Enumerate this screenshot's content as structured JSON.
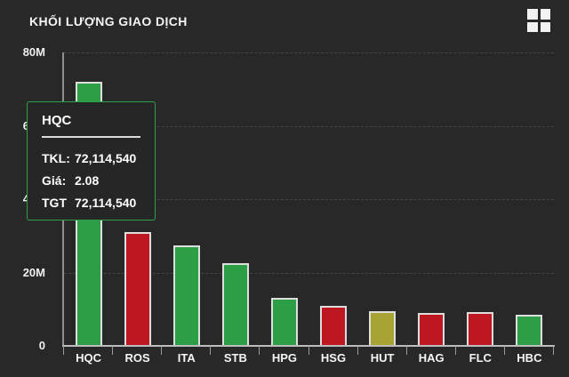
{
  "header": {
    "title": "KHỐI LƯỢNG GIAO DỊCH"
  },
  "colors": {
    "background": "#282828",
    "green": "#2c9e46",
    "red": "#bf1722",
    "yellow": "#a7a433",
    "bar_border": "#dedede",
    "tooltip_border": "#2fa14b",
    "gridline": "#454545",
    "axis": "#bdbdbd",
    "text": "#f5f5f5"
  },
  "chart_data": {
    "type": "bar",
    "title": "KHỐI LƯỢNG GIAO DỊCH",
    "categories": [
      "HQC",
      "ROS",
      "ITA",
      "STB",
      "HPG",
      "HSG",
      "HUT",
      "HAG",
      "FLC",
      "HBC"
    ],
    "values": [
      72114540,
      31000000,
      27300000,
      22600000,
      13100000,
      10900000,
      9400000,
      8900000,
      9200000,
      8600000
    ],
    "bar_colors": [
      "green",
      "red",
      "green",
      "green",
      "green",
      "red",
      "yellow",
      "red",
      "red",
      "green"
    ],
    "xlabel": "",
    "ylabel": "",
    "ylim": [
      0,
      80000000
    ],
    "y_tick_labels": [
      "80M",
      "60M",
      "40M",
      "20M",
      "0"
    ],
    "grid": "horizontal-dashed",
    "legend": "none"
  },
  "tooltip": {
    "title": "HQC",
    "rows": [
      {
        "label": "TKL:",
        "value": "72,114,540"
      },
      {
        "label": "Giá:",
        "value": "2.08"
      },
      {
        "label": "TGT",
        "value": "72,114,540"
      }
    ]
  }
}
